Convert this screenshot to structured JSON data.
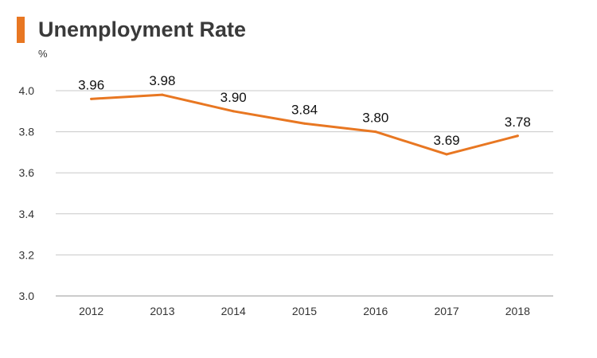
{
  "title": "Unemployment Rate",
  "colors": {
    "accent": "#e87722",
    "line": "#e87722",
    "grid": "#c8c8c8",
    "axis_text": "#333333",
    "title_text": "#3a3a3a"
  },
  "chart_data": {
    "type": "line",
    "title": "Unemployment Rate",
    "ylabel": "%",
    "xlabel": "",
    "categories": [
      "2012",
      "2013",
      "2014",
      "2015",
      "2016",
      "2017",
      "2018"
    ],
    "series": [
      {
        "values": [
          3.96,
          3.98,
          3.9,
          3.84,
          3.8,
          3.69,
          3.78
        ]
      }
    ],
    "data_labels": [
      "3.96",
      "3.98",
      "3.90",
      "3.84",
      "3.80",
      "3.69",
      "3.78"
    ],
    "ylim": [
      3.0,
      4.0
    ],
    "yticks": [
      "3.0",
      "3.2",
      "3.4",
      "3.6",
      "3.8",
      "4.0"
    ],
    "grid": true,
    "legend": "none"
  }
}
